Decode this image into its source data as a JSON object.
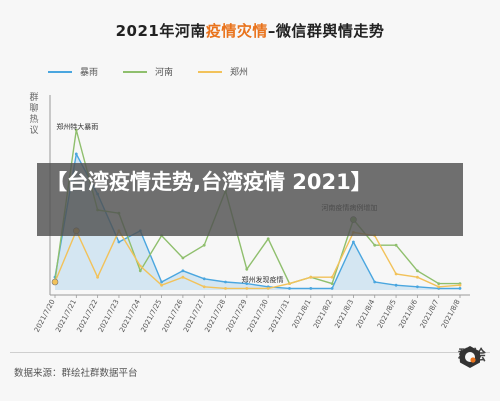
{
  "title": {
    "prefix": "2021年河南",
    "highlight": "疫情灾情",
    "suffix": "–微信群舆情走势"
  },
  "overlay_text": "【台湾疫情走势,台湾疫情 2021】",
  "source": "数据来源：群绘社群数据平台",
  "logo": {
    "text": "群绘",
    "icon": "hexagon-logo-icon"
  },
  "colors": {
    "rainstorm": "#4aa6df",
    "henan": "#8fbf6d",
    "zhengzhou": "#f2c25a",
    "title_highlight": "#e9731c",
    "overlay": "#505050"
  },
  "chart_data": {
    "type": "line",
    "title": "2021年河南疫情灾情–微信群舆情走势",
    "ylabel": "群聊热议",
    "xlabel": "",
    "legend_position": "top",
    "grid": false,
    "ylim": [
      0,
      100
    ],
    "categories": [
      "2021/7/20",
      "2021/7/21",
      "2021/7/22",
      "2021/7/23",
      "2021/7/24",
      "2021/7/25",
      "2021/7/26",
      "2021/7/27",
      "2021/7/28",
      "2021/7/29",
      "2021/7/30",
      "2021/7/31",
      "2021/8/1",
      "2021/8/2",
      "2021/8/3",
      "2021/8/4",
      "2021/8/5",
      "2021/8/6",
      "2021/8/7",
      "2021/8/8"
    ],
    "series": [
      {
        "name": "暴雨",
        "key": "rainstorm",
        "area": true,
        "values": [
          8,
          85,
          60,
          30,
          37,
          5,
          12,
          7,
          5,
          4,
          2,
          1,
          1,
          1,
          30,
          5,
          3,
          2,
          1,
          1
        ]
      },
      {
        "name": "河南",
        "key": "henan",
        "area": false,
        "values": [
          6,
          100,
          50,
          48,
          12,
          34,
          20,
          28,
          62,
          13,
          32,
          4,
          8,
          4,
          44,
          28,
          28,
          12,
          4,
          4
        ]
      },
      {
        "name": "郑州",
        "key": "zhengzhou",
        "area": false,
        "values": [
          5,
          37,
          8,
          37,
          15,
          3,
          8,
          2,
          1,
          1,
          1,
          4,
          8,
          8,
          36,
          34,
          10,
          8,
          2,
          3
        ]
      }
    ],
    "annotations": [
      {
        "text": "郑州特大暴雨",
        "category": "2021/7/21"
      },
      {
        "text": "河南疫情病例增加",
        "category": "2021/8/3"
      },
      {
        "text": "郑州发现疫情",
        "category": "2021/7/31"
      }
    ]
  }
}
